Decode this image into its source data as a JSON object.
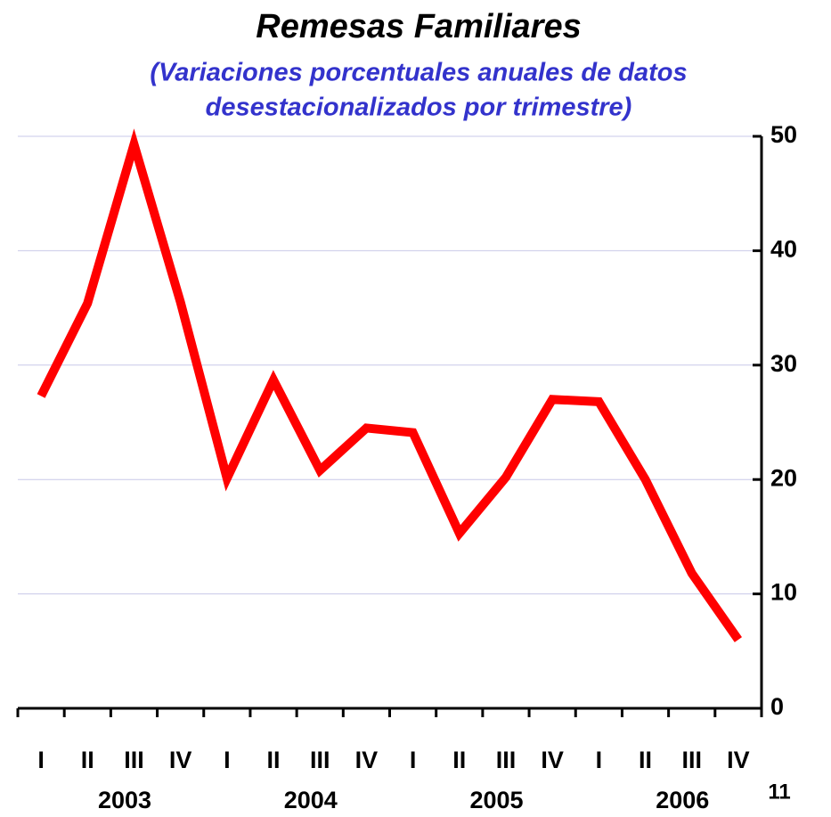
{
  "chart_data": {
    "type": "line",
    "title": "Remesas Familiares",
    "subtitle": [
      "(Variaciones porcentuales anuales de datos",
      "desestacionalizados por trimestre)"
    ],
    "categories": [
      "I",
      "II",
      "III",
      "IV",
      "I",
      "II",
      "III",
      "IV",
      "I",
      "II",
      "III",
      "IV",
      "I",
      "II",
      "III",
      "IV"
    ],
    "groups": [
      "2003",
      "2004",
      "2005",
      "2006"
    ],
    "series": [
      {
        "name": "Remesas",
        "color": "#ff0000",
        "values": [
          27.3,
          35.4,
          49.3,
          35.5,
          20.1,
          28.7,
          20.8,
          24.5,
          24.1,
          15.3,
          20.2,
          27.0,
          26.8,
          20.0,
          11.8,
          6.0
        ]
      }
    ],
    "ylim": [
      0,
      50
    ],
    "yticks": [
      0,
      10,
      20,
      30,
      40,
      50
    ],
    "grid": true,
    "annotation": "11"
  }
}
